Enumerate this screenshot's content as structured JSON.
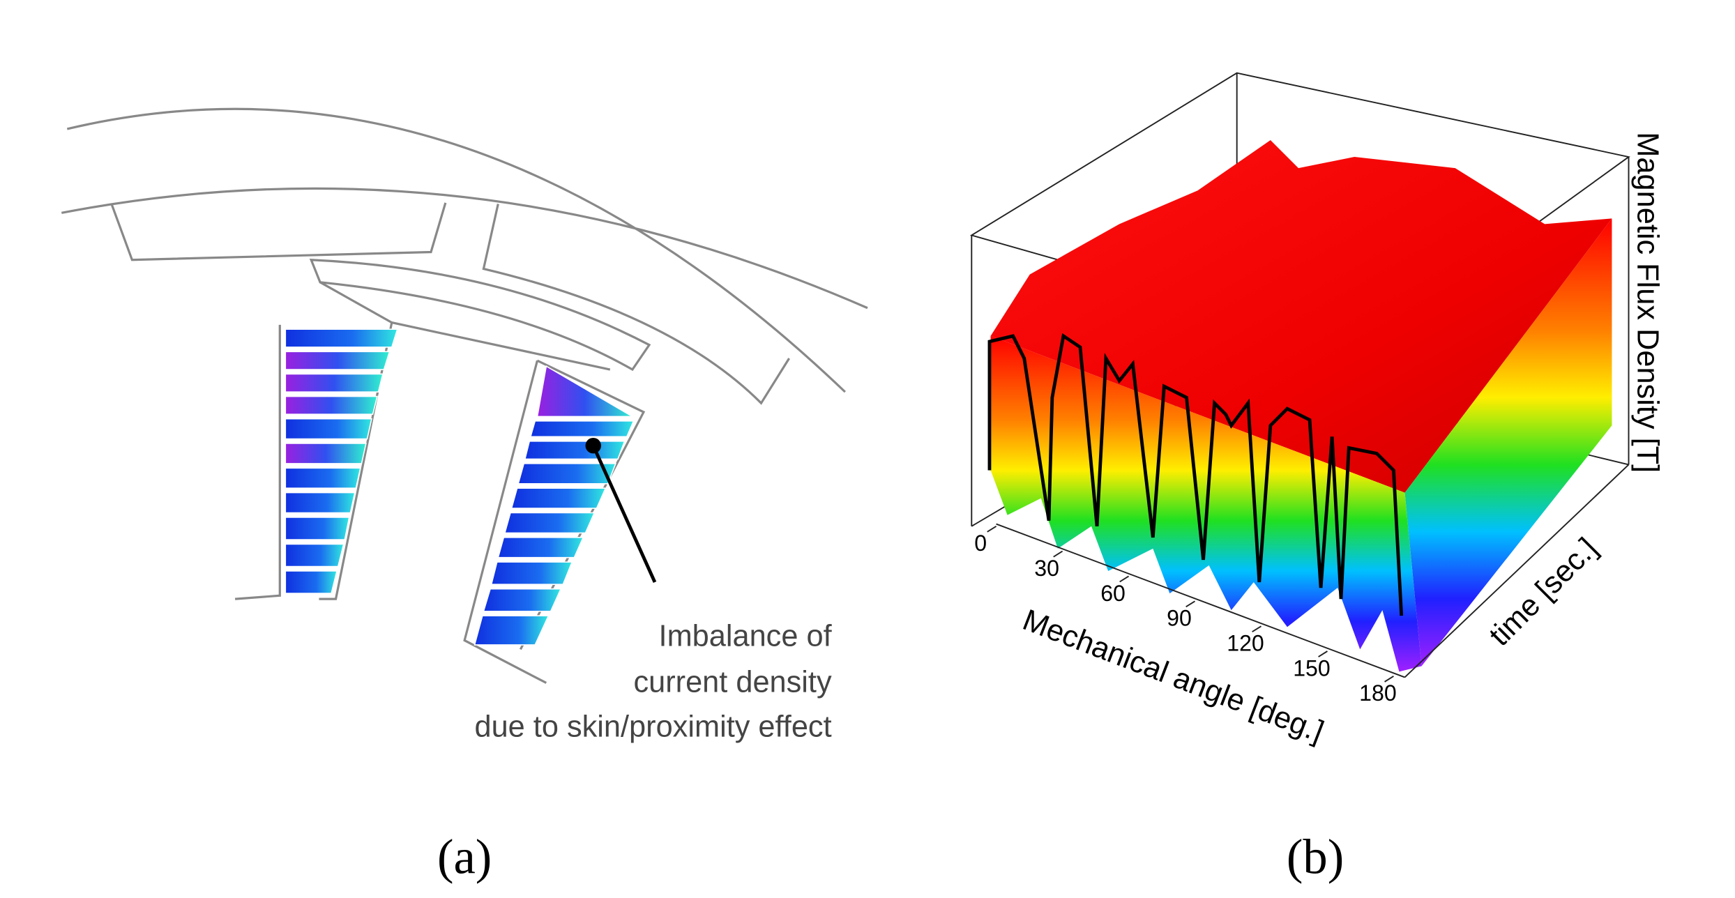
{
  "panel_a": {
    "annotation": [
      "Imbalance of",
      "current density",
      "due to skin/proximity effect"
    ],
    "label": "(a)"
  },
  "panel_b": {
    "x_axis_label": "Mechanical angle [deg.]",
    "x_ticks": [
      "0",
      "30",
      "60",
      "90",
      "120",
      "150",
      "180"
    ],
    "y_axis_label": "time [sec.]",
    "z_axis_label": "Magnetic Flux Density [T]",
    "label": "(b)"
  }
}
